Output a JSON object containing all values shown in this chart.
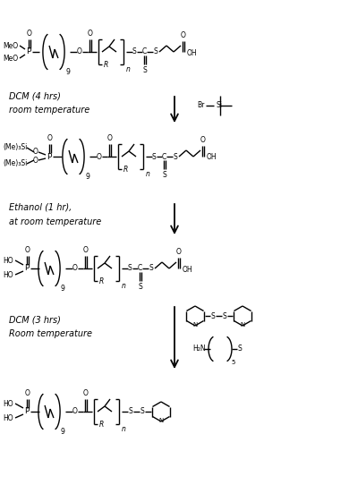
{
  "background_color": "#ffffff",
  "line_color": "#000000",
  "text_color": "#000000",
  "fig_width": 3.9,
  "fig_height": 5.42,
  "dpi": 100,
  "step1_reagent": "DCM (4 hrs)\nroom temperature",
  "step2_reagent": "Ethanol (1 hr),\nat room temperature",
  "step3_reagent": "DCM (3 hrs)\nRoom temperature",
  "font_size_label": 7.0,
  "font_size_struct": 6.5,
  "font_size_sub": 5.5
}
